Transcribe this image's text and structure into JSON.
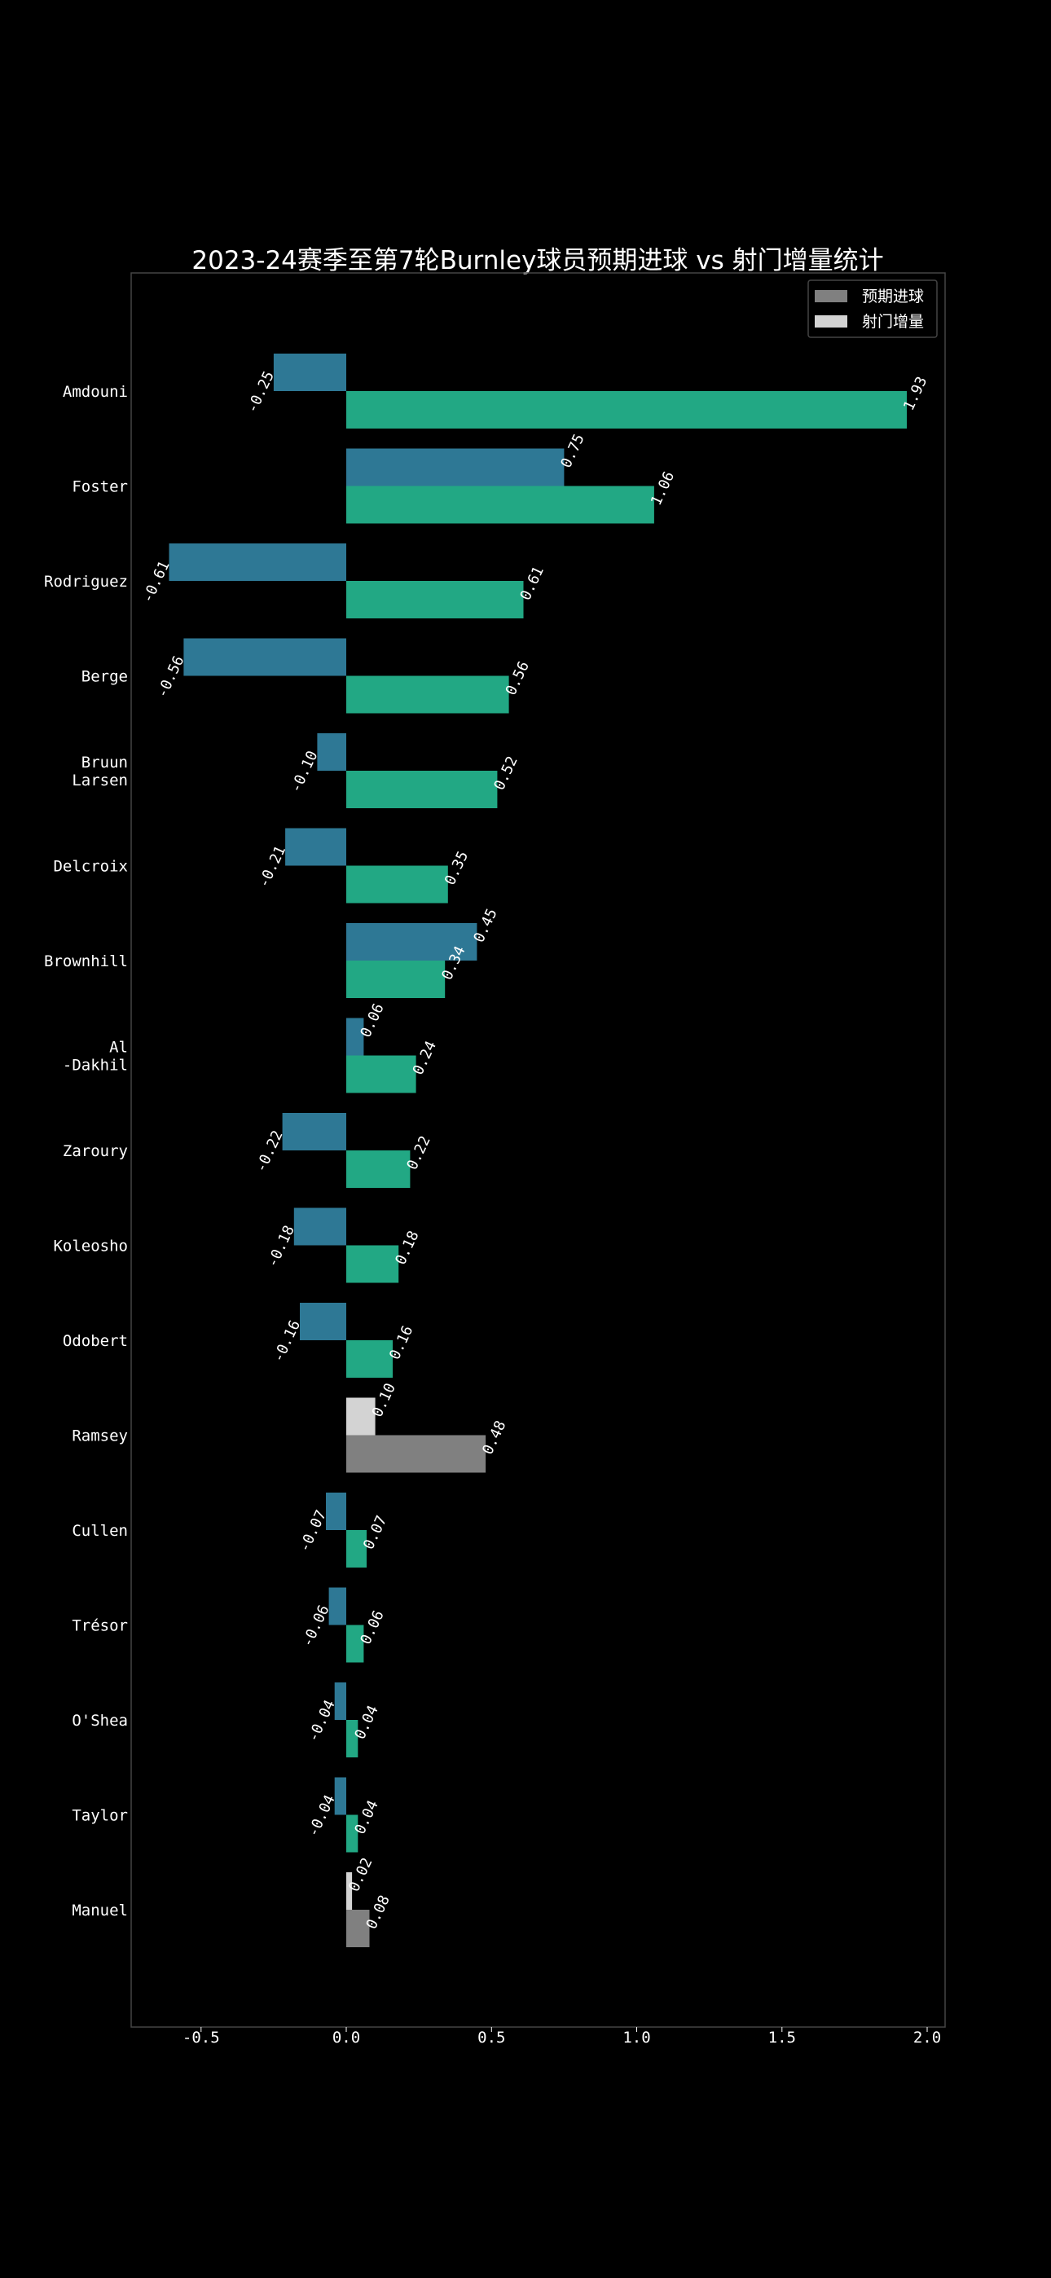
{
  "chart_data": {
    "type": "bar",
    "orientation": "horizontal",
    "title": "2023-24赛季至第7轮Burnley球员预期进球 vs 射门增量统计",
    "xlabel": "",
    "ylabel": "",
    "xlim": [
      -0.75,
      2.05
    ],
    "xticks": [
      "-0.5",
      "0.0",
      "0.5",
      "1.0",
      "1.5",
      "2.0"
    ],
    "grid": false,
    "legend_position": "top-right",
    "legend": [
      {
        "label": "预期进球",
        "color": "#808080"
      },
      {
        "label": "射门增量",
        "color": "#d3d3d3"
      }
    ],
    "colors": {
      "xg_bar": "#2e7895",
      "delta_bar": "#22a884",
      "legend_xg": "#808080",
      "legend_delta": "#d3d3d3",
      "background": "#000000",
      "axes_edge": "#444444"
    },
    "categories": [
      [
        "Amdouni"
      ],
      [
        "Foster"
      ],
      [
        "Rodriguez"
      ],
      [
        "Berge"
      ],
      [
        "Bruun",
        "Larsen"
      ],
      [
        "Delcroix"
      ],
      [
        "Brownhill"
      ],
      [
        "Al",
        "-Dakhil"
      ],
      [
        "Zaroury"
      ],
      [
        "Koleosho"
      ],
      [
        "Odobert"
      ],
      [
        "Ramsey"
      ],
      [
        "Cullen"
      ],
      [
        "Trésor"
      ],
      [
        "O'Shea"
      ],
      [
        "Taylor"
      ],
      [
        "Manuel"
      ]
    ],
    "series": [
      {
        "name": "预期进球",
        "values": [
          -0.25,
          0.75,
          -0.61,
          -0.56,
          -0.1,
          -0.21,
          0.45,
          0.06,
          -0.22,
          -0.18,
          -0.16,
          0.1,
          -0.07,
          -0.06,
          -0.04,
          -0.04,
          0.02
        ],
        "labels": [
          "-0.25",
          "0.75",
          "-0.61",
          "-0.56",
          "-0.10",
          "-0.21",
          "0.45",
          "0.06",
          "-0.22",
          "-0.18",
          "-0.16",
          "0.10",
          "-0.07",
          "-0.06",
          "-0.04",
          "-0.04",
          "0.02"
        ]
      },
      {
        "name": "射门增量",
        "values": [
          1.93,
          1.06,
          0.61,
          0.56,
          0.52,
          0.35,
          0.34,
          0.24,
          0.22,
          0.18,
          0.16,
          0.48,
          0.07,
          0.06,
          0.04,
          0.04,
          0.08
        ],
        "labels": [
          "1.93",
          "1.06",
          "0.61",
          "0.56",
          "0.52",
          "0.35",
          "0.34",
          "0.24",
          "0.22",
          "0.18",
          "0.16",
          "0.48",
          "0.07",
          "0.06",
          "0.04",
          "0.04",
          "0.08"
        ]
      }
    ],
    "highlighted_categories": [
      "Ramsey",
      "Manuel"
    ]
  }
}
